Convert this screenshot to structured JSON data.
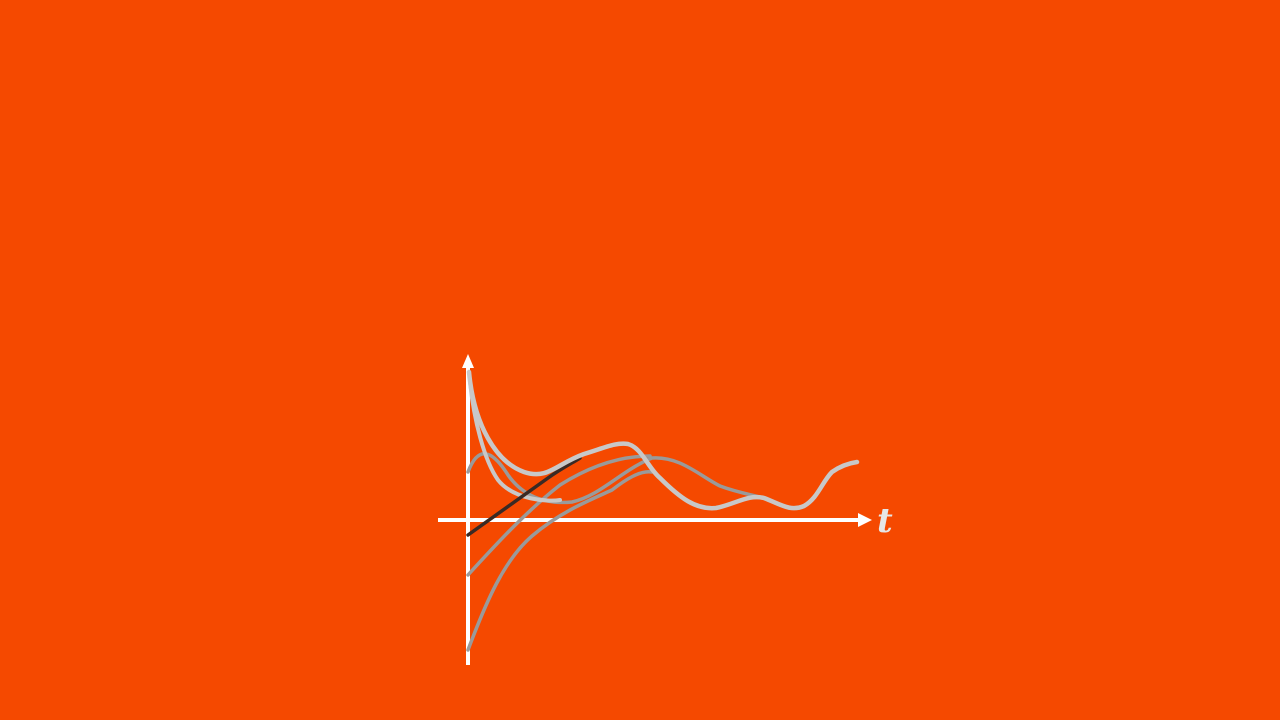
{
  "background_color": "#F54900",
  "axis": {
    "color": "#FFFFFF",
    "x_label": "t",
    "label_color": "#E6E6E6"
  },
  "curve_colors": {
    "light": "#C8C8C8",
    "mid": "#9A9A9A",
    "dark": "#3A2A24"
  },
  "curves": [
    {
      "name": "curve-mid-upper",
      "tone": "mid"
    },
    {
      "name": "curve-mid-lower",
      "tone": "mid"
    },
    {
      "name": "curve-mid-bottom",
      "tone": "mid"
    },
    {
      "name": "curve-light-top",
      "tone": "light"
    },
    {
      "name": "curve-dark-rising",
      "tone": "dark"
    },
    {
      "name": "curve-light-main",
      "tone": "light"
    }
  ]
}
